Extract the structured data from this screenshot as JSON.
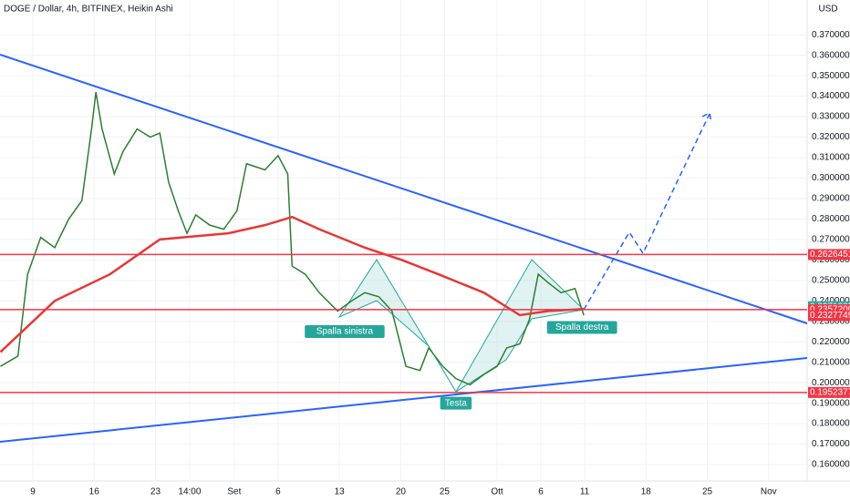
{
  "chart_data": {
    "type": "line",
    "title": "DOGE / Dollar, 4h, BITFINEX, Heikin Ashi",
    "currency": "USD",
    "xlim": [
      5.25,
      97.4
    ],
    "ylim": [
      0.152,
      0.387
    ],
    "grid": true,
    "xticks": [
      {
        "value": 9,
        "label": "9"
      },
      {
        "value": 16,
        "label": "16"
      },
      {
        "value": 23,
        "label": "23"
      },
      {
        "value": 26.9,
        "label": "14:00"
      },
      {
        "value": 32,
        "label": "Set"
      },
      {
        "value": 37,
        "label": "6"
      },
      {
        "value": 44,
        "label": "13"
      },
      {
        "value": 51,
        "label": "20"
      },
      {
        "value": 56,
        "label": "25"
      },
      {
        "value": 62,
        "label": "Ott"
      },
      {
        "value": 67,
        "label": "6"
      },
      {
        "value": 72,
        "label": "11"
      },
      {
        "value": 79,
        "label": "18"
      },
      {
        "value": 86,
        "label": "25"
      },
      {
        "value": 93,
        "label": "Nov"
      }
    ],
    "yticks": [
      {
        "value": 0.16,
        "label": "0.16000000"
      },
      {
        "value": 0.17,
        "label": "0.17000000"
      },
      {
        "value": 0.18,
        "label": "0.18000000"
      },
      {
        "value": 0.19,
        "label": "0.19000000"
      },
      {
        "value": 0.2,
        "label": "0.20000000"
      },
      {
        "value": 0.21,
        "label": "0.21000000"
      },
      {
        "value": 0.22,
        "label": "0.22000000"
      },
      {
        "value": 0.23,
        "label": "0.23000000"
      },
      {
        "value": 0.24,
        "label": "0.24000000"
      },
      {
        "value": 0.25,
        "label": "0.25000000"
      },
      {
        "value": 0.26,
        "label": "0.26000000"
      },
      {
        "value": 0.27,
        "label": "0.27000000"
      },
      {
        "value": 0.28,
        "label": "0.28000000"
      },
      {
        "value": 0.29,
        "label": "0.29000000"
      },
      {
        "value": 0.3,
        "label": "0.30000000"
      },
      {
        "value": 0.31,
        "label": "0.31000000"
      },
      {
        "value": 0.32,
        "label": "0.32000000"
      },
      {
        "value": 0.33,
        "label": "0.33000000"
      },
      {
        "value": 0.34,
        "label": "0.34000000"
      },
      {
        "value": 0.35,
        "label": "0.35000000"
      },
      {
        "value": 0.36,
        "label": "0.36000000"
      },
      {
        "value": 0.37,
        "label": "0.37000000"
      }
    ],
    "series": [
      {
        "color": "#2e7d32",
        "x": [
          5.3,
          7.3,
          8.4,
          9.9,
          11.5,
          13.1,
          14.6,
          15.7,
          16.2,
          16.9,
          18.3,
          19.3,
          20.9,
          22.4,
          23.5,
          24.5,
          25.6,
          26.6,
          27.6,
          29.2,
          30.8,
          32.3,
          33.4,
          35.5,
          37.0,
          38.1,
          38.6,
          40.1,
          41.7,
          43.8,
          45.4,
          46.9,
          48.5,
          50.0,
          51.6,
          53.2,
          54.2,
          55.8,
          57.3,
          58.9,
          60.5,
          62.0,
          63.1,
          64.6,
          65.7,
          66.7,
          67.8,
          69.3,
          70.9,
          71.9
        ],
        "values": [
          0.208,
          0.213,
          0.253,
          0.271,
          0.266,
          0.28,
          0.289,
          0.324,
          0.342,
          0.324,
          0.302,
          0.313,
          0.324,
          0.32,
          0.322,
          0.298,
          0.284,
          0.273,
          0.282,
          0.277,
          0.275,
          0.284,
          0.307,
          0.304,
          0.311,
          0.302,
          0.257,
          0.253,
          0.244,
          0.235,
          0.24,
          0.244,
          0.242,
          0.235,
          0.208,
          0.206,
          0.217,
          0.208,
          0.202,
          0.199,
          0.204,
          0.208,
          0.217,
          0.219,
          0.231,
          0.253,
          0.249,
          0.244,
          0.246,
          0.233
        ]
      },
      {
        "color": "#e53935",
        "x": [
          5.3,
          11.5,
          17.8,
          23.5,
          31.3,
          35.5,
          38.6,
          41.7,
          46.9,
          51.1,
          55.3,
          60.5,
          64.6,
          67.8,
          71.9
        ],
        "values": [
          0.215,
          0.24,
          0.253,
          0.27,
          0.273,
          0.277,
          0.281,
          0.275,
          0.266,
          0.26,
          0.253,
          0.244,
          0.233,
          0.235,
          0.236
        ]
      }
    ],
    "price_labels": [
      {
        "value": 0.26264519,
        "label": "0.26264519",
        "color": "#f23645"
      },
      {
        "value": 0.2371325,
        "label": "0.23713250",
        "color": "#26a69a"
      },
      {
        "value": 0.23572,
        "label": "0.23572000",
        "color": "#f23645"
      },
      {
        "value": 0.2327749,
        "label": "0.23277490",
        "color": "#f23645"
      },
      {
        "value": 0.19523777,
        "label": "0.19523777",
        "color": "#f23645"
      }
    ],
    "annotations": [
      {
        "text": "Spalla sinistra",
        "x": 44.6,
        "y": 0.225
      },
      {
        "text": "Testa",
        "x": 57.3,
        "y": 0.19
      },
      {
        "text": "Spalla destra",
        "x": 71.7,
        "y": 0.227
      }
    ]
  }
}
